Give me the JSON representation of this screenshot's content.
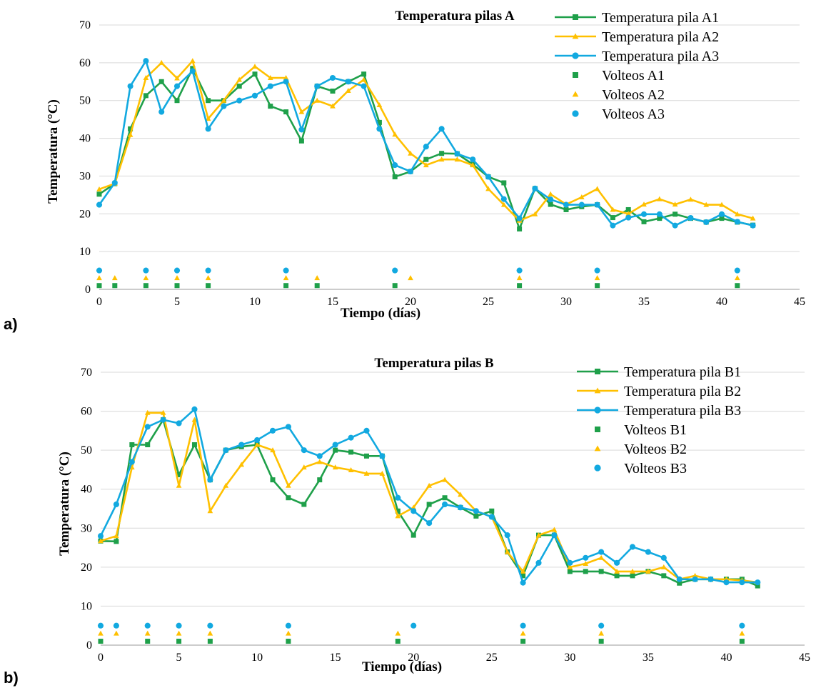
{
  "colors": {
    "s1": "#1fa04a",
    "s2": "#ffc000",
    "s3": "#12a9e0"
  },
  "panel_labels": [
    "a)",
    "b)"
  ],
  "chart_data": [
    {
      "type": "line",
      "title": "Temperatura pilas A",
      "xlabel": "Tiempo (días)",
      "ylabel": "Temperatura (°C)",
      "xlim": [
        0,
        45
      ],
      "ylim": [
        0,
        70
      ],
      "xticks": [
        0,
        5,
        10,
        15,
        20,
        25,
        30,
        35,
        40,
        45
      ],
      "yticks": [
        0,
        10,
        20,
        30,
        40,
        50,
        60,
        70
      ],
      "grid": "horizontal",
      "legend_position": "top-right",
      "series": [
        {
          "name": "Temperatura pila A1",
          "marker": "square",
          "color_key": "s1",
          "x": [
            0,
            1,
            2,
            3,
            4,
            5,
            6,
            7,
            8,
            9,
            10,
            11,
            12,
            13,
            14,
            15,
            16,
            17,
            18,
            19,
            20,
            21,
            22,
            23,
            24,
            25,
            26,
            27,
            28,
            29,
            30,
            31,
            32,
            33,
            34,
            35,
            36,
            37,
            38,
            39,
            40,
            41,
            42
          ],
          "y": [
            25.2,
            28,
            42.5,
            51.3,
            55,
            50,
            58.5,
            50,
            50,
            53.8,
            57,
            48.5,
            47,
            39.3,
            53.8,
            52.5,
            55,
            57,
            44.2,
            29.8,
            31.2,
            34.4,
            36,
            35.9,
            33.1,
            29.8,
            28.2,
            16,
            26.7,
            22.5,
            21.1,
            21.9,
            22.4,
            19,
            21.1,
            17.9,
            18.8,
            19.9,
            18.8,
            17.8,
            18.8,
            17.8,
            17
          ]
        },
        {
          "name": "Temperatura pila A2",
          "marker": "triangle",
          "color_key": "s2",
          "x": [
            0,
            1,
            2,
            3,
            4,
            5,
            6,
            7,
            8,
            9,
            10,
            11,
            12,
            13,
            14,
            15,
            16,
            17,
            18,
            19,
            20,
            21,
            22,
            23,
            24,
            25,
            26,
            27,
            28,
            29,
            30,
            31,
            32,
            33,
            34,
            35,
            36,
            37,
            38,
            39,
            40,
            41,
            42
          ],
          "y": [
            26.5,
            28,
            40.9,
            56,
            60,
            55.9,
            60.5,
            45.2,
            50,
            55.5,
            59,
            56,
            56,
            47,
            50,
            48.5,
            52.6,
            55.5,
            48.8,
            41,
            36,
            32.9,
            34.4,
            34.4,
            32.9,
            26.6,
            22.4,
            18.2,
            19.9,
            25.2,
            22.5,
            24.4,
            26.6,
            21.1,
            20,
            22.5,
            23.9,
            22.5,
            23.8,
            22.4,
            22.4,
            19.9,
            18.8
          ]
        },
        {
          "name": "Temperatura pila A3",
          "marker": "circle",
          "color_key": "s3",
          "x": [
            0,
            1,
            2,
            3,
            4,
            5,
            6,
            7,
            8,
            9,
            10,
            11,
            12,
            13,
            14,
            15,
            16,
            17,
            18,
            19,
            20,
            21,
            22,
            23,
            24,
            25,
            26,
            27,
            28,
            29,
            30,
            31,
            32,
            33,
            34,
            35,
            36,
            37,
            38,
            39,
            40,
            41,
            42
          ],
          "y": [
            22.4,
            28.2,
            53.8,
            60.5,
            47,
            53.8,
            57.8,
            42.5,
            48.5,
            50,
            51.3,
            53.8,
            55,
            42.3,
            53.8,
            56,
            55,
            53.8,
            42.5,
            32.9,
            31.2,
            37.8,
            42.5,
            35.9,
            34.4,
            29.8,
            23.9,
            18.8,
            26.7,
            23.8,
            22.4,
            22.4,
            22.4,
            16.9,
            19,
            19.9,
            19.9,
            16.9,
            18.9,
            17.8,
            19.9,
            17.9,
            16.9
          ]
        },
        {
          "name": "Volteos A1",
          "marker": "square",
          "color_key": "s1",
          "line": false,
          "x": [
            0,
            1,
            3,
            5,
            7,
            12,
            14,
            19,
            27,
            32,
            41
          ],
          "y": [
            1,
            1,
            1,
            1,
            1,
            1,
            1,
            1,
            1,
            1,
            1
          ]
        },
        {
          "name": "Volteos A2",
          "marker": "triangle",
          "color_key": "s2",
          "line": false,
          "x": [
            0,
            1,
            3,
            5,
            7,
            12,
            14,
            20,
            27,
            32,
            41
          ],
          "y": [
            3,
            3,
            3,
            3,
            3,
            3,
            3,
            3,
            3,
            3,
            3
          ]
        },
        {
          "name": "Volteos A3",
          "marker": "circle",
          "color_key": "s3",
          "line": false,
          "x": [
            0,
            3,
            5,
            7,
            12,
            19,
            27,
            32,
            41
          ],
          "y": [
            5,
            5,
            5,
            5,
            5,
            5,
            5,
            5,
            5
          ]
        }
      ]
    },
    {
      "type": "line",
      "title": "Temperatura pilas B",
      "xlabel": "Tiempo (días)",
      "ylabel": "Temperatura (°C)",
      "xlim": [
        0,
        45
      ],
      "ylim": [
        0,
        70
      ],
      "xticks": [
        0,
        5,
        10,
        15,
        20,
        25,
        30,
        35,
        40,
        45
      ],
      "yticks": [
        0,
        10,
        20,
        30,
        40,
        50,
        60,
        70
      ],
      "grid": "horizontal",
      "legend_position": "top-right",
      "series": [
        {
          "name": "Temperatura pila B1",
          "marker": "square",
          "color_key": "s1",
          "x": [
            0,
            1,
            2,
            3,
            4,
            5,
            6,
            7,
            8,
            9,
            10,
            11,
            12,
            13,
            14,
            15,
            16,
            17,
            18,
            19,
            20,
            21,
            22,
            23,
            24,
            25,
            26,
            27,
            28,
            29,
            30,
            31,
            32,
            33,
            34,
            35,
            36,
            37,
            38,
            39,
            40,
            41,
            42
          ],
          "y": [
            26.7,
            26.6,
            51.4,
            51.4,
            57.8,
            43.7,
            51.4,
            42.4,
            50,
            50.9,
            51.4,
            42.4,
            37.8,
            36.1,
            42.4,
            50,
            49.5,
            48.5,
            48.5,
            34.4,
            28.2,
            36.1,
            37.8,
            35.3,
            33.1,
            34.4,
            23.9,
            17.8,
            28.2,
            28.2,
            18.9,
            18.9,
            18.9,
            17.8,
            17.8,
            18.9,
            17.8,
            15.9,
            16.9,
            16.9,
            16.9,
            16.9,
            15.2
          ]
        },
        {
          "name": "Temperatura pila B2",
          "marker": "triangle",
          "color_key": "s2",
          "x": [
            0,
            1,
            2,
            3,
            4,
            5,
            6,
            7,
            8,
            9,
            10,
            11,
            12,
            13,
            14,
            15,
            16,
            17,
            18,
            19,
            20,
            21,
            22,
            23,
            24,
            25,
            26,
            27,
            28,
            29,
            30,
            31,
            32,
            33,
            34,
            35,
            36,
            37,
            38,
            39,
            40,
            41,
            42
          ],
          "y": [
            26.7,
            28,
            45.6,
            59.6,
            59.6,
            40.9,
            57.8,
            34.4,
            40.9,
            46.3,
            51.4,
            50,
            40.9,
            45.6,
            47,
            45.6,
            44.9,
            44,
            44,
            33.1,
            35.3,
            40.9,
            42.4,
            38.6,
            34.4,
            32.9,
            23.9,
            18.9,
            28.2,
            29.6,
            20,
            20.9,
            22.4,
            18.9,
            18.9,
            18.9,
            20,
            16.9,
            17.8,
            16.9,
            16.9,
            16.6,
            16.1
          ]
        },
        {
          "name": "Temperatura pila B3",
          "marker": "circle",
          "color_key": "s3",
          "x": [
            0,
            1,
            2,
            3,
            4,
            5,
            6,
            7,
            8,
            9,
            10,
            11,
            12,
            13,
            14,
            15,
            16,
            17,
            18,
            19,
            20,
            21,
            22,
            23,
            24,
            25,
            26,
            27,
            28,
            29,
            30,
            31,
            32,
            33,
            34,
            35,
            36,
            37,
            38,
            39,
            40,
            41,
            42
          ],
          "y": [
            28,
            36.1,
            47,
            56,
            57.8,
            56.9,
            60.5,
            42.4,
            50,
            51.4,
            52.6,
            55,
            56,
            50,
            48.5,
            51.4,
            53.2,
            55,
            48.5,
            37.8,
            34.4,
            31.3,
            36.1,
            35.3,
            34.4,
            32.9,
            28.2,
            16,
            21.1,
            28.2,
            21.1,
            22.4,
            23.9,
            21.1,
            25.2,
            23.9,
            22.4,
            16.9,
            16.9,
            16.9,
            16.1,
            16.1,
            16.1
          ]
        },
        {
          "name": "Volteos B1",
          "marker": "square",
          "color_key": "s1",
          "line": false,
          "x": [
            0,
            3,
            5,
            7,
            12,
            19,
            27,
            32,
            41
          ],
          "y": [
            1,
            1,
            1,
            1,
            1,
            1,
            1,
            1,
            1
          ]
        },
        {
          "name": "Volteos B2",
          "marker": "triangle",
          "color_key": "s2",
          "line": false,
          "x": [
            0,
            1,
            3,
            5,
            7,
            12,
            19,
            27,
            32,
            41
          ],
          "y": [
            3,
            3,
            3,
            3,
            3,
            3,
            3,
            3,
            3,
            3
          ]
        },
        {
          "name": "Volteos B3",
          "marker": "circle",
          "color_key": "s3",
          "line": false,
          "x": [
            0,
            1,
            3,
            5,
            7,
            12,
            20,
            27,
            32,
            41
          ],
          "y": [
            5,
            5,
            5,
            5,
            5,
            5,
            5,
            5,
            5,
            5
          ]
        }
      ]
    }
  ]
}
